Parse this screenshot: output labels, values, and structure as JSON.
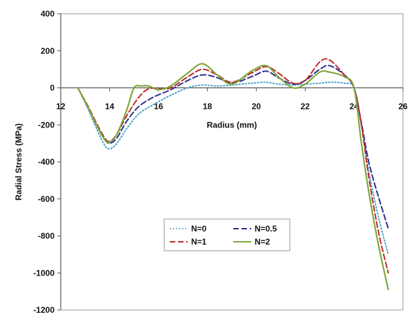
{
  "chart_data": {
    "type": "line",
    "title": "",
    "xlabel": "Radius (mm)",
    "ylabel": "Radial Stress (MPa)",
    "xlim": [
      12,
      26
    ],
    "ylim": [
      -1200,
      400
    ],
    "xticks": [
      12,
      14,
      16,
      18,
      20,
      22,
      24,
      26
    ],
    "yticks": [
      400,
      200,
      0,
      -200,
      -400,
      -600,
      -800,
      -1000,
      -1200
    ],
    "x_axis_at_y": 0,
    "grid": false,
    "legend": "inside-bottom-center",
    "series": [
      {
        "name": "N=0",
        "color": "#4ba3c7",
        "dash": "1.5,3",
        "x": [
          12.7,
          13.1,
          13.5,
          13.8,
          14.0,
          14.3,
          14.7,
          15.2,
          15.8,
          16.5,
          17.2,
          17.8,
          18.4,
          19.0,
          19.8,
          20.4,
          20.9,
          21.5,
          22.0,
          22.6,
          23.0,
          23.6,
          24.0,
          24.3,
          24.6,
          25.0,
          25.4
        ],
        "y": [
          0,
          -110,
          -230,
          -310,
          -330,
          -300,
          -220,
          -140,
          -90,
          -40,
          0,
          15,
          10,
          15,
          25,
          30,
          20,
          15,
          20,
          25,
          30,
          25,
          0,
          -200,
          -450,
          -700,
          -900
        ]
      },
      {
        "name": "N=0.5",
        "color": "#2e2e8c",
        "dash": "8,4",
        "x": [
          12.7,
          13.1,
          13.5,
          13.8,
          14.0,
          14.3,
          14.7,
          15.2,
          15.8,
          16.5,
          17.2,
          17.8,
          18.4,
          19.0,
          19.8,
          20.4,
          20.9,
          21.5,
          22.0,
          22.6,
          23.0,
          23.6,
          24.0,
          24.3,
          24.6,
          25.0,
          25.4
        ],
        "y": [
          0,
          -100,
          -210,
          -280,
          -300,
          -270,
          -180,
          -100,
          -50,
          -10,
          40,
          70,
          55,
          25,
          60,
          90,
          55,
          20,
          40,
          100,
          120,
          70,
          0,
          -190,
          -400,
          -590,
          -760
        ]
      },
      {
        "name": "N=1",
        "color": "#c0282d",
        "dash": "8,4",
        "x": [
          12.7,
          13.1,
          13.5,
          13.8,
          14.0,
          14.3,
          14.7,
          15.2,
          15.6,
          16.0,
          16.5,
          17.2,
          17.8,
          18.4,
          19.0,
          19.8,
          20.4,
          20.9,
          21.5,
          22.0,
          22.6,
          23.0,
          23.6,
          24.0,
          24.3,
          24.6,
          25.0,
          25.4
        ],
        "y": [
          0,
          -95,
          -200,
          -270,
          -290,
          -250,
          -150,
          -50,
          -5,
          -5,
          0,
          60,
          100,
          70,
          30,
          80,
          115,
          80,
          25,
          40,
          140,
          150,
          70,
          0,
          -200,
          -480,
          -780,
          -1000
        ]
      },
      {
        "name": "N=2",
        "color": "#7ea83b",
        "dash": "",
        "x": [
          12.7,
          13.1,
          13.5,
          13.8,
          14.0,
          14.3,
          14.7,
          15.0,
          15.3,
          15.6,
          16.0,
          16.5,
          17.2,
          17.8,
          18.4,
          19.0,
          19.8,
          20.4,
          20.9,
          21.5,
          22.0,
          22.6,
          23.0,
          23.6,
          24.0,
          24.3,
          24.6,
          25.0,
          25.4
        ],
        "y": [
          0,
          -100,
          -210,
          -280,
          -295,
          -250,
          -120,
          0,
          10,
          10,
          -10,
          10,
          80,
          130,
          70,
          20,
          90,
          120,
          60,
          0,
          20,
          85,
          85,
          60,
          0,
          -300,
          -560,
          -850,
          -1090
        ]
      }
    ]
  }
}
